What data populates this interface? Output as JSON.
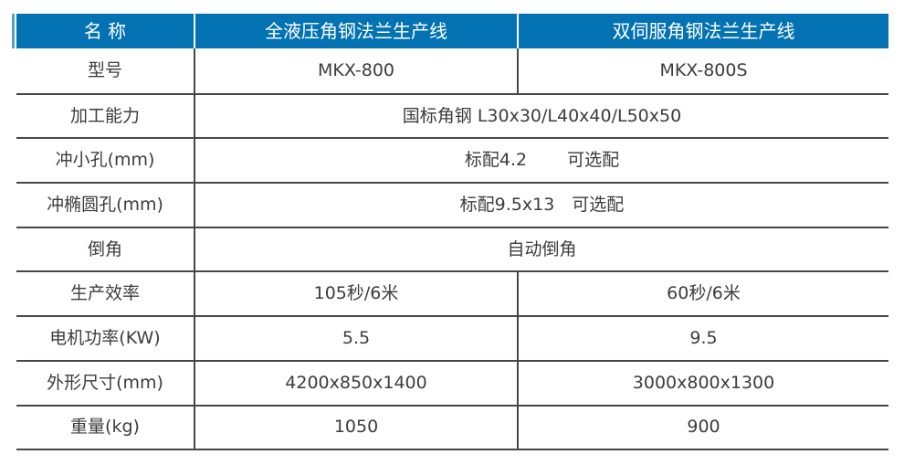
{
  "colors": {
    "header_bg": "#0272B2",
    "header_text": "#FFFFFF",
    "body_text": "#3C3C3C",
    "grid_line": "#474747",
    "accent_stripe": "#5C9EC9",
    "page_bg": "#FFFFFF"
  },
  "table": {
    "header": {
      "name_label": "名 称",
      "product1": "全液压角钢法兰生产线",
      "product2": "双伺服角钢法兰生产线"
    },
    "rows": [
      {
        "label": "型号",
        "col1": "MKX-800",
        "col2": "MKX-800S"
      },
      {
        "label": "加工能力",
        "value": "国标角钢 L30x30/L40x40/L50x50"
      },
      {
        "label": "冲小孔(mm)",
        "value": "标配4.2　　 可选配"
      },
      {
        "label": "冲椭圆孔(mm)",
        "value": "标配9.5x13　可选配"
      },
      {
        "label": "倒角",
        "value": "自动倒角"
      },
      {
        "label": "生产效率",
        "col1": "105秒/6米",
        "col2": "60秒/6米"
      },
      {
        "label": "电机功率(KW)",
        "col1": "5.5",
        "col2": "9.5"
      },
      {
        "label": "外形尺寸(mm)",
        "col1": "4200x850x1400",
        "col2": "3000x800x1300"
      },
      {
        "label": "重量(kg)",
        "col1": "1050",
        "col2": "900"
      }
    ]
  }
}
